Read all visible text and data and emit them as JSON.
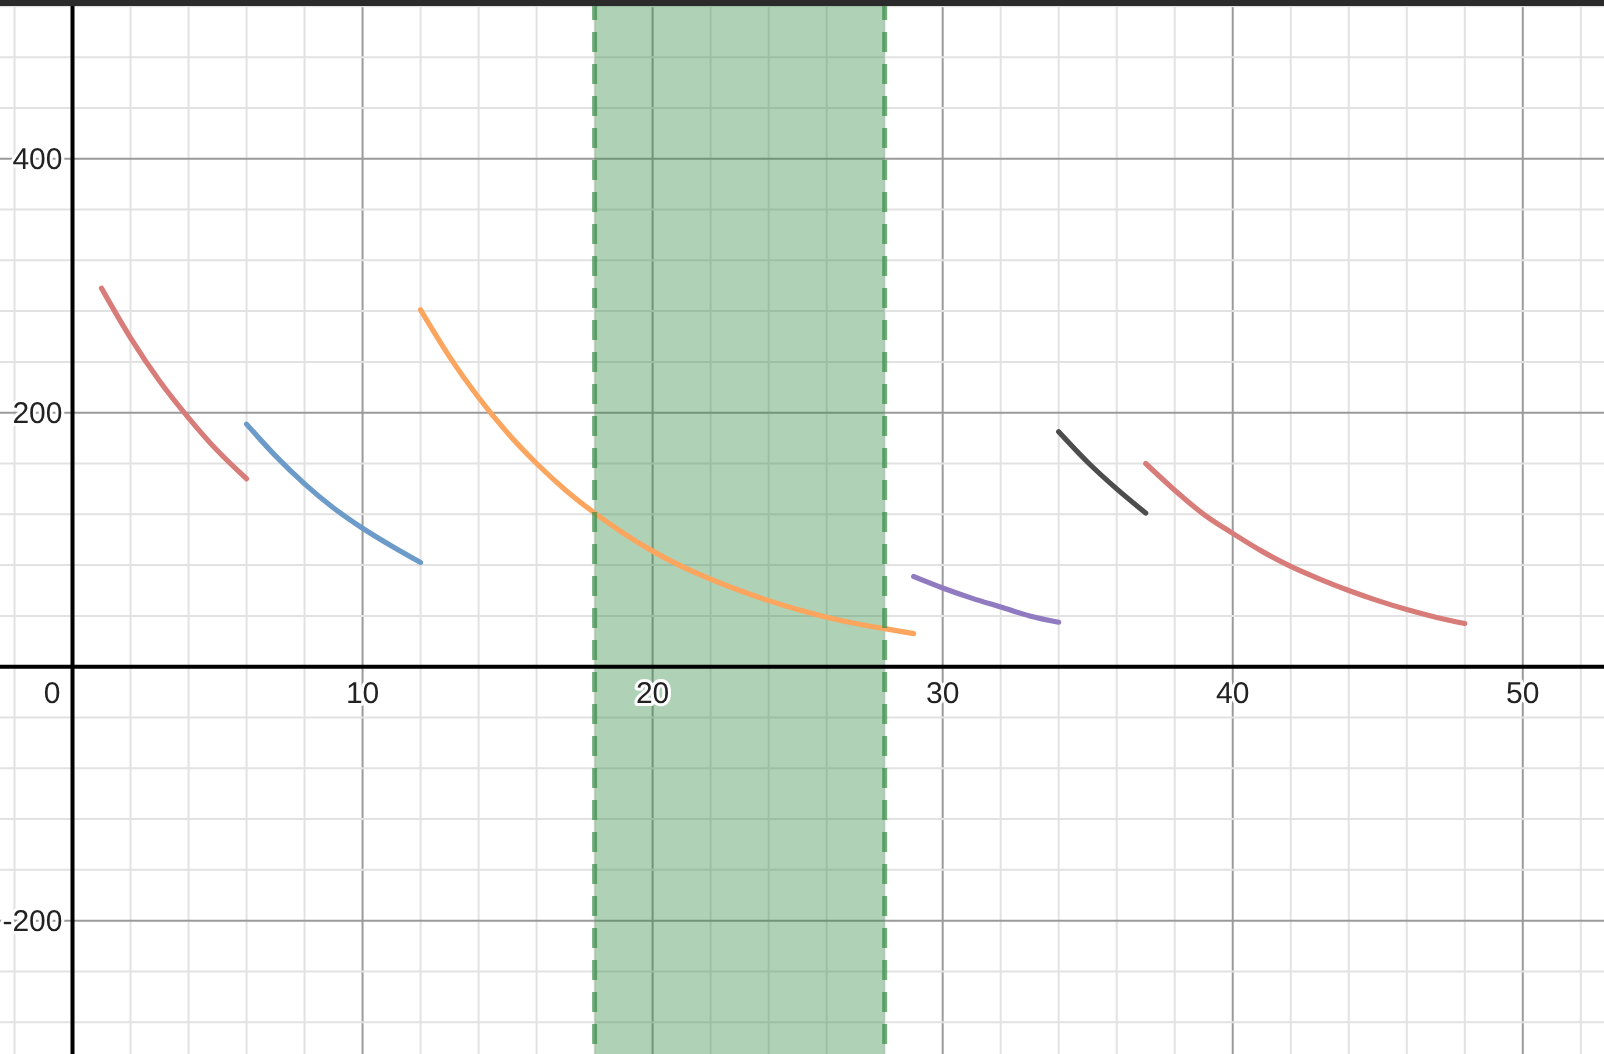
{
  "chart_data": {
    "type": "line",
    "xlim": [
      -2.5,
      52.8
    ],
    "ylim": [
      -305,
      525
    ],
    "grid": true,
    "line_style": "solid",
    "xticks": [
      {
        "value": -2,
        "label": null
      },
      0,
      {
        "value": 2,
        "label": null
      },
      {
        "value": 4,
        "label": null
      },
      {
        "value": 6,
        "label": null
      },
      {
        "value": 8,
        "label": null
      },
      10,
      {
        "value": 12,
        "label": null
      },
      {
        "value": 14,
        "label": null
      },
      {
        "value": 16,
        "label": null
      },
      {
        "value": 18,
        "label": null
      },
      20,
      {
        "value": 22,
        "label": null
      },
      {
        "value": 24,
        "label": null
      },
      {
        "value": 26,
        "label": null
      },
      {
        "value": 28,
        "label": null
      },
      30,
      {
        "value": 32,
        "label": null
      },
      {
        "value": 34,
        "label": null
      },
      {
        "value": 36,
        "label": null
      },
      {
        "value": 38,
        "label": null
      },
      40,
      {
        "value": 42,
        "label": null
      },
      {
        "value": 44,
        "label": null
      },
      {
        "value": 46,
        "label": null
      },
      {
        "value": 48,
        "label": null
      },
      50,
      {
        "value": 52,
        "label": null
      }
    ],
    "yticks": [
      {
        "value": -280,
        "label": null
      },
      {
        "value": -240,
        "label": null
      },
      -200,
      {
        "value": -160,
        "label": null
      },
      {
        "value": -120,
        "label": null
      },
      {
        "value": -80,
        "label": null
      },
      {
        "value": -40,
        "label": null
      },
      {
        "value": 0,
        "label": null
      },
      {
        "value": 40,
        "label": null
      },
      {
        "value": 80,
        "label": null
      },
      {
        "value": 120,
        "label": null
      },
      {
        "value": 160,
        "label": null
      },
      200,
      {
        "value": 240,
        "label": null
      },
      {
        "value": 280,
        "label": null
      },
      {
        "value": 320,
        "label": null
      },
      {
        "value": 360,
        "label": null
      },
      400,
      {
        "value": 440,
        "label": null
      },
      {
        "value": 480,
        "label": null
      },
      {
        "value": 520,
        "label": null
      }
    ],
    "bands": [
      {
        "axis": "x",
        "from": 18,
        "to": 28,
        "color": "#388c46"
      }
    ],
    "series": [
      {
        "color": "#d87c79",
        "x": [
          1,
          2,
          3,
          4,
          5,
          6
        ],
        "values": [
          298,
          259,
          225,
          196,
          170,
          148
        ]
      },
      {
        "color": "#6c9bca",
        "x": [
          6,
          7,
          8,
          9,
          10,
          11,
          12
        ],
        "values": [
          191,
          166,
          144,
          125,
          109,
          95,
          82
        ]
      },
      {
        "color": "#fba55e",
        "x": [
          12,
          13,
          14,
          15,
          16,
          17,
          18,
          19,
          20,
          21,
          22,
          23,
          24,
          25,
          26,
          27,
          28,
          29
        ],
        "values": [
          281,
          244,
          212,
          184,
          160,
          139,
          121,
          105,
          91,
          79,
          69,
          60,
          52,
          45,
          39,
          34,
          30,
          26
        ]
      },
      {
        "color": "#907bc1",
        "x": [
          29,
          30,
          31,
          32,
          33,
          34
        ],
        "values": [
          71,
          62,
          54,
          47,
          40,
          35
        ]
      },
      {
        "color": "#4d4d4d",
        "x": [
          34,
          35,
          36,
          37
        ],
        "values": [
          185,
          161,
          140,
          121
        ]
      },
      {
        "color": "#d87c79",
        "x": [
          37,
          38,
          39,
          40,
          41,
          42,
          43,
          44,
          45,
          46,
          47,
          48
        ],
        "values": [
          160,
          139,
          120,
          105,
          91,
          79,
          69,
          60,
          52,
          45,
          39,
          34
        ]
      }
    ]
  }
}
